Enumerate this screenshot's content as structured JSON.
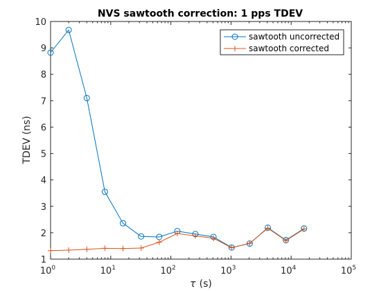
{
  "chart_data": {
    "type": "line",
    "title": "NVS sawtooth correction: 1 pps TDEV",
    "xlabel_symbol": "τ",
    "xlabel_unit": "(s)",
    "ylabel": "TDEV (ns)",
    "xscale": "log",
    "xlim": [
      1,
      100000
    ],
    "ylim": [
      1,
      10
    ],
    "x_ticks": [
      {
        "value": 1,
        "base": "10",
        "exp": "0"
      },
      {
        "value": 10,
        "base": "10",
        "exp": "1"
      },
      {
        "value": 100,
        "base": "10",
        "exp": "2"
      },
      {
        "value": 1000,
        "base": "10",
        "exp": "3"
      },
      {
        "value": 10000,
        "base": "10",
        "exp": "4"
      },
      {
        "value": 100000,
        "base": "10",
        "exp": "5"
      }
    ],
    "y_ticks": [
      {
        "value": 1,
        "label": "1"
      },
      {
        "value": 2,
        "label": "2"
      },
      {
        "value": 3,
        "label": "3"
      },
      {
        "value": 4,
        "label": "4"
      },
      {
        "value": 5,
        "label": "5"
      },
      {
        "value": 6,
        "label": "6"
      },
      {
        "value": 7,
        "label": "7"
      },
      {
        "value": 8,
        "label": "8"
      },
      {
        "value": 9,
        "label": "9"
      },
      {
        "value": 10,
        "label": "10"
      }
    ],
    "grid": false,
    "legend_position": "top-right",
    "series": [
      {
        "name": "sawtooth uncorrected",
        "color": "#0072BD",
        "marker": "circle",
        "x": [
          1,
          2,
          4,
          8,
          16,
          32,
          64,
          128,
          256,
          512,
          1024,
          2048,
          4096,
          8192,
          16384
        ],
        "y": [
          8.82,
          9.68,
          7.1,
          3.55,
          2.36,
          1.86,
          1.84,
          2.06,
          1.95,
          1.84,
          1.44,
          1.59,
          2.19,
          1.72,
          2.16
        ]
      },
      {
        "name": "sawtooth corrected",
        "color": "#D95319",
        "marker": "plus",
        "x": [
          1,
          2,
          4,
          8,
          16,
          32,
          64,
          128,
          256,
          512,
          1024,
          2048,
          4096,
          8192,
          16384
        ],
        "y": [
          1.32,
          1.34,
          1.37,
          1.41,
          1.4,
          1.42,
          1.64,
          1.97,
          1.88,
          1.79,
          1.43,
          1.6,
          2.17,
          1.7,
          2.14
        ]
      }
    ]
  }
}
